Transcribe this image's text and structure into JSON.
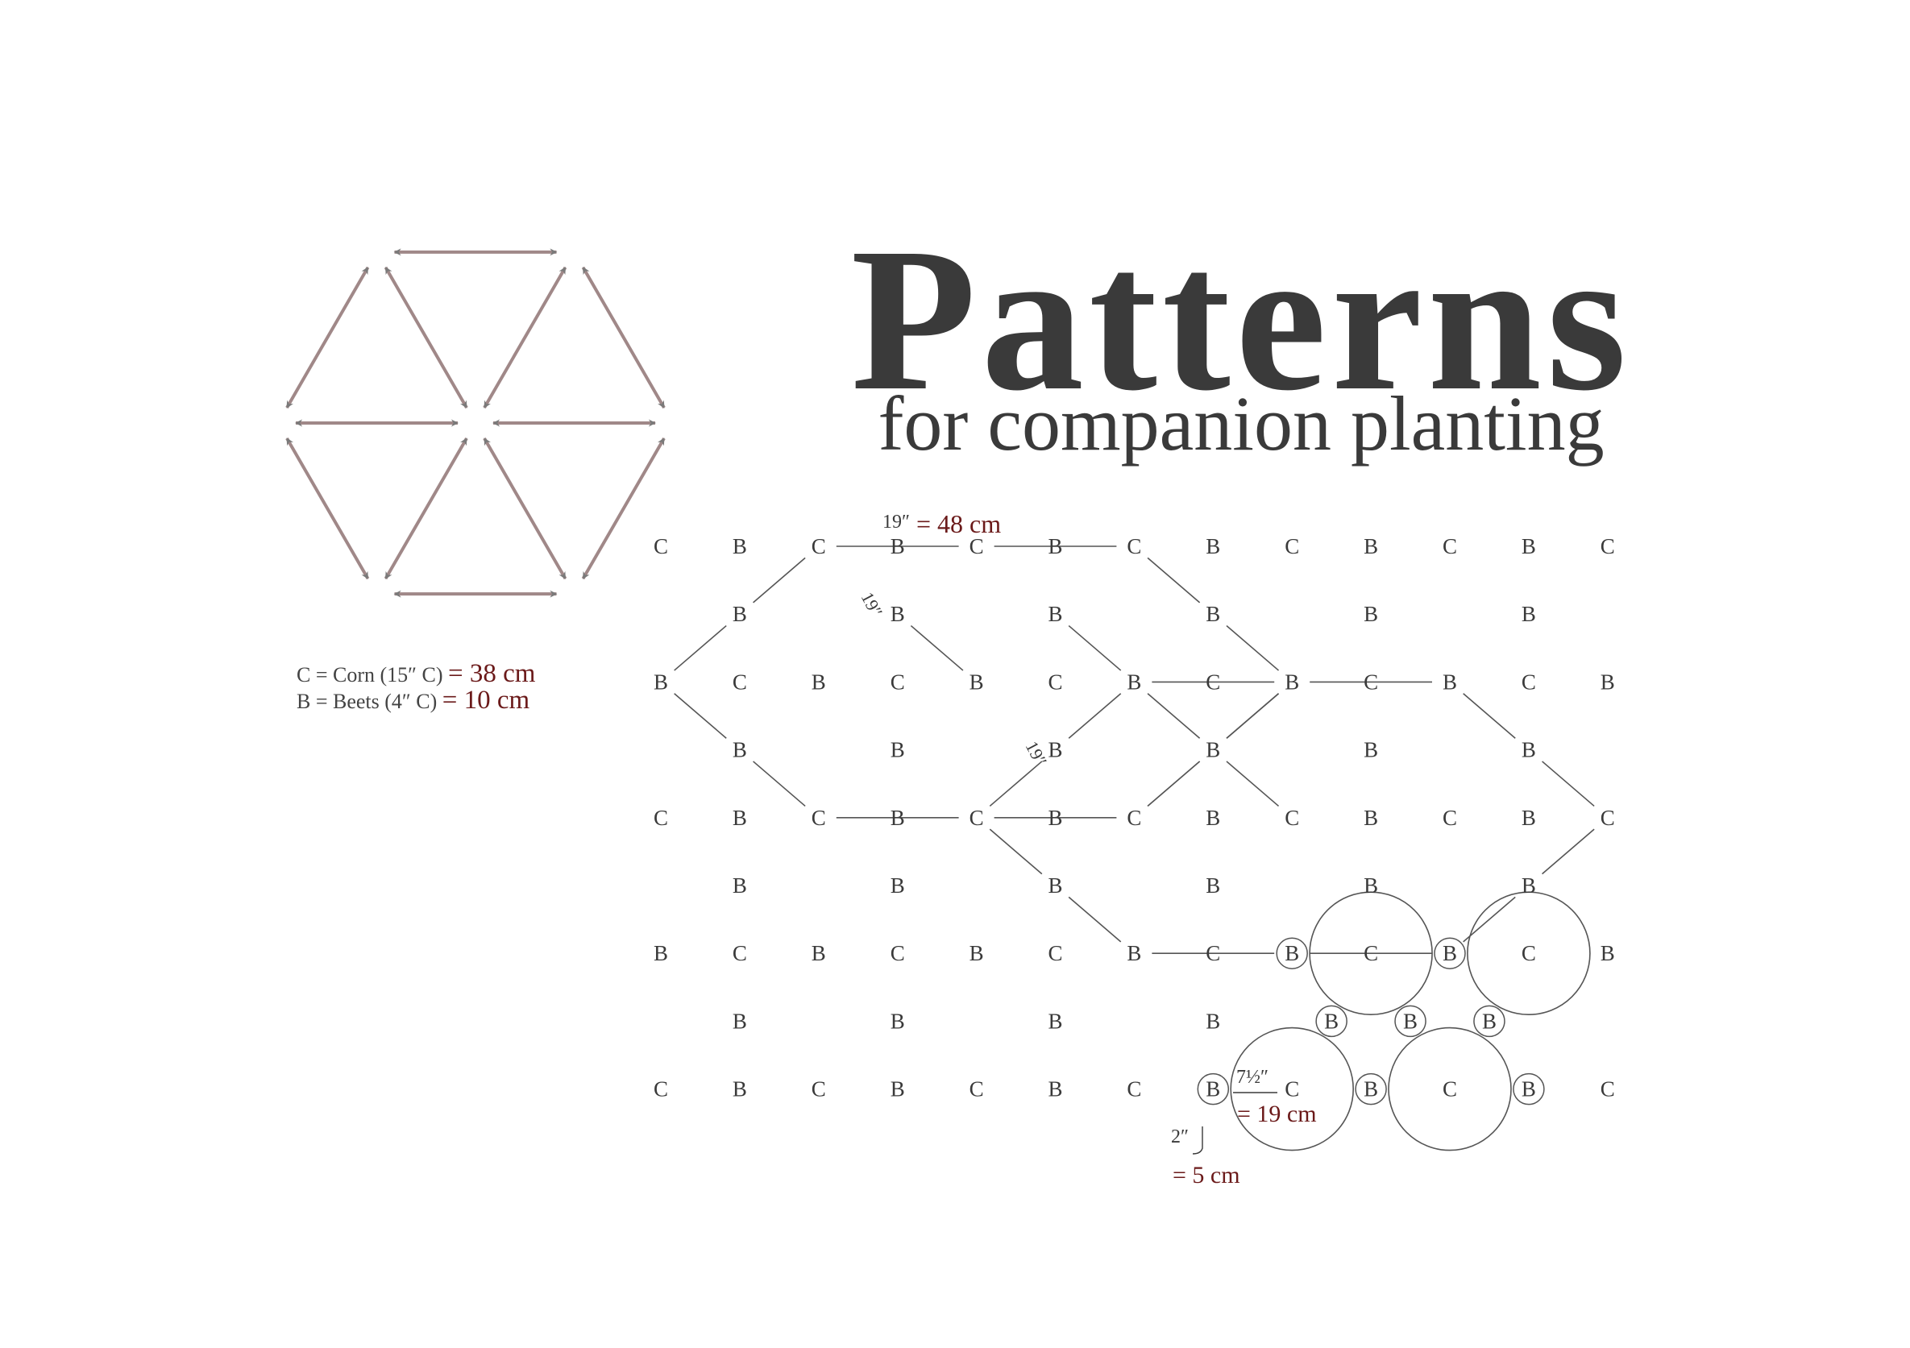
{
  "title": "Patterns",
  "subtitle": "for companion planting",
  "legend": {
    "corn_text": "C = Corn (15″ C)",
    "corn_metric": "= 38 cm",
    "beets_text": "B = Beets (4″ C)",
    "beets_metric": "= 10 cm"
  },
  "labels": {
    "corn": "C",
    "beet": "B",
    "hex_spacing": "19″",
    "hex_spacing_top": "19″",
    "hex_spacing_metric": "= 48 cm",
    "corn_radius": "7½″",
    "corn_radius_metric": "= 19 cm",
    "beet_radius": "2″",
    "beet_radius_metric": "= 5 cm"
  },
  "colors": {
    "text": "#3a3a3a",
    "metric": "#6b1a1a",
    "arrow_line": "#a08888",
    "arrow_head": "#7a7a7a",
    "grid_line": "#555555"
  }
}
